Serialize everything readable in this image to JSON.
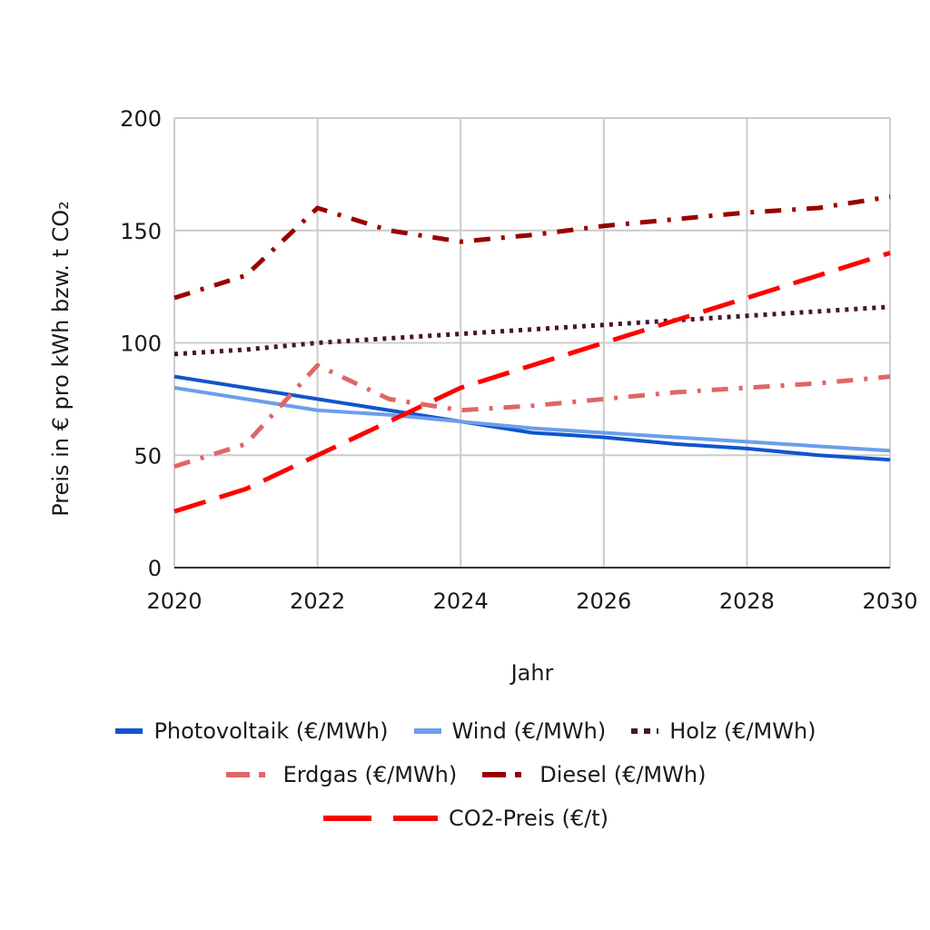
{
  "chart_data": {
    "type": "line",
    "title": "",
    "xlabel": "Jahr",
    "ylabel": "Preis in € pro kWh bzw. t CO₂",
    "x": [
      2020,
      2021,
      2022,
      2023,
      2024,
      2025,
      2026,
      2027,
      2028,
      2029,
      2030
    ],
    "xlim": [
      2020,
      2030
    ],
    "ylim": [
      0,
      200
    ],
    "x_ticks": [
      2020,
      2022,
      2024,
      2026,
      2028,
      2030
    ],
    "y_ticks": [
      0,
      50,
      100,
      150,
      200
    ],
    "x_tick_labels": [
      "2020",
      "2022",
      "2024",
      "2026",
      "2028",
      "2030"
    ],
    "y_tick_labels": [
      "0",
      "50",
      "100",
      "150",
      "200"
    ],
    "grid": true,
    "legend_position": "bottom",
    "series": [
      {
        "name": "Photovoltaik (€/MWh)",
        "color": "#1155cc",
        "style": "solid",
        "values": [
          85,
          80,
          75,
          70,
          65,
          60,
          58,
          55,
          53,
          50,
          48
        ]
      },
      {
        "name": "Wind (€/MWh)",
        "color": "#6d9eeb",
        "style": "solid",
        "values": [
          80,
          75,
          70,
          68,
          65,
          62,
          60,
          58,
          56,
          54,
          52
        ]
      },
      {
        "name": "Holz (€/MWh)",
        "color": "#4c1130",
        "style": "dotted",
        "values": [
          95,
          97,
          100,
          102,
          104,
          106,
          108,
          110,
          112,
          114,
          116
        ]
      },
      {
        "name": "Erdgas (€/MWh)",
        "color": "#e06666",
        "style": "dashdot",
        "values": [
          45,
          55,
          90,
          75,
          70,
          72,
          75,
          78,
          80,
          82,
          85
        ]
      },
      {
        "name": "Diesel (€/MWh)",
        "color": "#990000",
        "style": "dashdot",
        "values": [
          120,
          130,
          160,
          150,
          145,
          148,
          152,
          155,
          158,
          160,
          165
        ]
      },
      {
        "name": "CO2-Preis (€/t)",
        "color": "#ff0000",
        "style": "longdash",
        "values": [
          25,
          35,
          50,
          65,
          80,
          90,
          100,
          110,
          120,
          130,
          140
        ]
      }
    ],
    "legend_rows": [
      [
        0,
        1,
        2
      ],
      [
        3,
        4
      ],
      [
        5
      ]
    ]
  }
}
